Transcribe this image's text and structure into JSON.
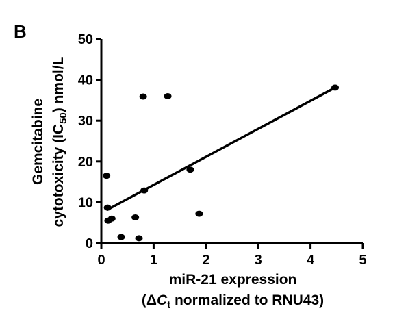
{
  "panel_label": "B",
  "chart_data": {
    "type": "scatter",
    "xlabel_line1": "miR-21 expression",
    "xlabel_line2_parts": [
      "(Δ",
      "C",
      "t",
      " normalized to RNU43)"
    ],
    "ylabel_line1": "Gemcitabine",
    "ylabel_line2_parts": [
      "cytotoxicity (IC",
      "50",
      ") nmol/L"
    ],
    "xlim": [
      0,
      5
    ],
    "ylim": [
      0,
      50
    ],
    "x_ticks": [
      0,
      1,
      2,
      3,
      4,
      5
    ],
    "y_ticks": [
      0,
      10,
      20,
      30,
      40,
      50
    ],
    "x_tick_labels": [
      "0",
      "1",
      "2",
      "3",
      "4",
      "5"
    ],
    "y_tick_labels": [
      "0",
      "10",
      "20",
      "30",
      "40",
      "50"
    ],
    "grid": false,
    "points": [
      {
        "x": 0.1,
        "y": 16.5
      },
      {
        "x": 0.12,
        "y": 8.7
      },
      {
        "x": 0.13,
        "y": 5.5
      },
      {
        "x": 0.2,
        "y": 6.0
      },
      {
        "x": 0.38,
        "y": 1.5
      },
      {
        "x": 0.65,
        "y": 6.3
      },
      {
        "x": 0.72,
        "y": 1.2
      },
      {
        "x": 0.8,
        "y": 35.9
      },
      {
        "x": 0.82,
        "y": 12.9
      },
      {
        "x": 1.27,
        "y": 36.0
      },
      {
        "x": 1.7,
        "y": 18.0
      },
      {
        "x": 1.87,
        "y": 7.2
      },
      {
        "x": 4.47,
        "y": 38.1
      }
    ],
    "trendline": {
      "x": [
        0.12,
        4.47
      ],
      "y": [
        8.2,
        38.1
      ]
    }
  }
}
